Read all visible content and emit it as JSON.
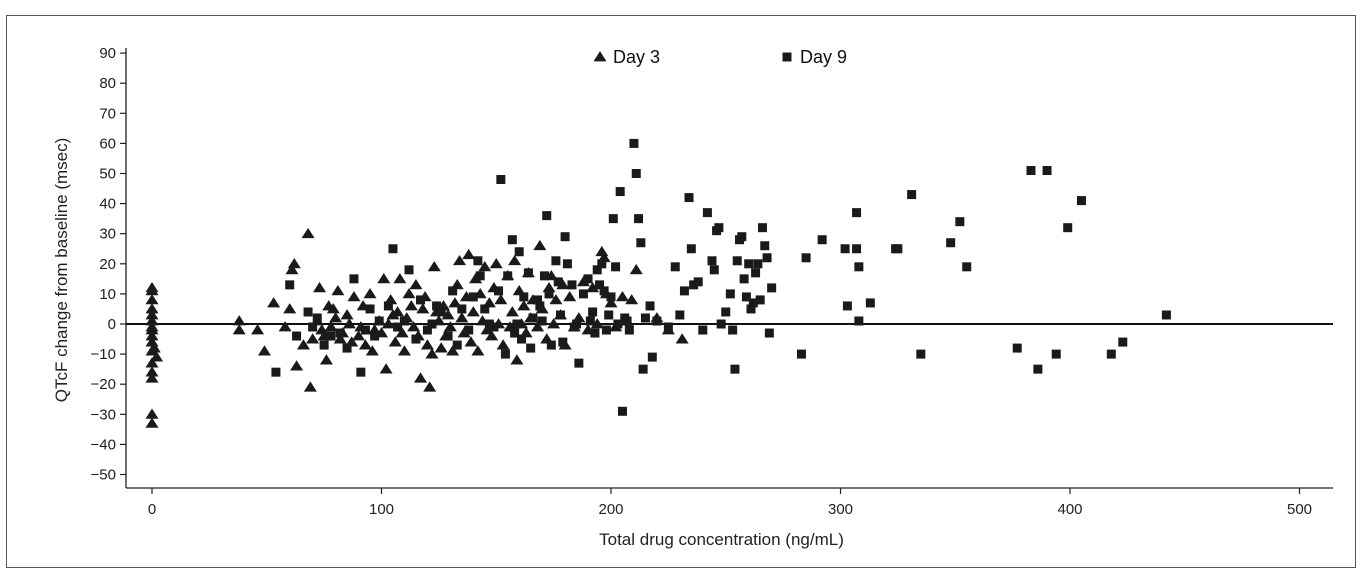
{
  "chart_data": {
    "type": "scatter",
    "title": "",
    "xlabel": "Total drug concentration (ng/mL)",
    "ylabel": "QTcF change from baseline (msec)",
    "xlim": [
      -10,
      515
    ],
    "ylim": [
      -53,
      90
    ],
    "xticks": [
      "0",
      "100",
      "200",
      "300",
      "400",
      "500"
    ],
    "yticks": [
      "90",
      "80",
      "70",
      "60",
      "50",
      "40",
      "30",
      "20",
      "10",
      "0",
      "−10",
      "−20",
      "−30",
      "−40",
      "−50"
    ],
    "reference_line_y": 0,
    "legend_position": "top-center",
    "marker_color": "#1a1a1a",
    "series": [
      {
        "name": "Day 3",
        "marker": "triangle",
        "points": [
          [
            0,
            12
          ],
          [
            0,
            11
          ],
          [
            0,
            8
          ],
          [
            0,
            5
          ],
          [
            0,
            3
          ],
          [
            0,
            1
          ],
          [
            0,
            -1
          ],
          [
            0,
            -2
          ],
          [
            0,
            -4
          ],
          [
            0,
            -6
          ],
          [
            0,
            -9
          ],
          [
            0,
            -13
          ],
          [
            0,
            -16
          ],
          [
            0,
            -18
          ],
          [
            0,
            -30
          ],
          [
            0,
            -33
          ],
          [
            1,
            -8
          ],
          [
            2,
            -11
          ],
          [
            38,
            1
          ],
          [
            38,
            -2
          ],
          [
            46,
            -2
          ],
          [
            49,
            -9
          ],
          [
            53,
            7
          ],
          [
            58,
            -1
          ],
          [
            60,
            5
          ],
          [
            61,
            18
          ],
          [
            62,
            20
          ],
          [
            63,
            -14
          ],
          [
            66,
            -7
          ],
          [
            68,
            30
          ],
          [
            69,
            -21
          ],
          [
            70,
            -5
          ],
          [
            72,
            1
          ],
          [
            73,
            12
          ],
          [
            74,
            -2
          ],
          [
            75,
            -4
          ],
          [
            76,
            -12
          ],
          [
            77,
            6
          ],
          [
            78,
            -1
          ],
          [
            79,
            5
          ],
          [
            80,
            2
          ],
          [
            81,
            11
          ],
          [
            82,
            -5
          ],
          [
            83,
            -3
          ],
          [
            85,
            3
          ],
          [
            86,
            0
          ],
          [
            87,
            -6
          ],
          [
            88,
            9
          ],
          [
            90,
            -4
          ],
          [
            91,
            -1
          ],
          [
            92,
            6
          ],
          [
            93,
            -7
          ],
          [
            95,
            10
          ],
          [
            96,
            -9
          ],
          [
            97,
            -2
          ],
          [
            99,
            1
          ],
          [
            100,
            -3
          ],
          [
            101,
            15
          ],
          [
            102,
            -15
          ],
          [
            103,
            0
          ],
          [
            104,
            8
          ],
          [
            105,
            3
          ],
          [
            106,
            -6
          ],
          [
            107,
            4
          ],
          [
            108,
            15
          ],
          [
            109,
            -3
          ],
          [
            110,
            -9
          ],
          [
            111,
            2
          ],
          [
            112,
            10
          ],
          [
            113,
            6
          ],
          [
            114,
            -1
          ],
          [
            115,
            13
          ],
          [
            116,
            -4
          ],
          [
            117,
            -18
          ],
          [
            118,
            5
          ],
          [
            119,
            9
          ],
          [
            120,
            -7
          ],
          [
            121,
            -21
          ],
          [
            122,
            -10
          ],
          [
            123,
            19
          ],
          [
            124,
            4
          ],
          [
            125,
            1
          ],
          [
            126,
            -8
          ],
          [
            127,
            6
          ],
          [
            128,
            -4
          ],
          [
            129,
            3
          ],
          [
            130,
            -1
          ],
          [
            131,
            -9
          ],
          [
            132,
            7
          ],
          [
            133,
            13
          ],
          [
            134,
            21
          ],
          [
            135,
            2
          ],
          [
            136,
            -3
          ],
          [
            137,
            9
          ],
          [
            138,
            23
          ],
          [
            139,
            -6
          ],
          [
            140,
            4
          ],
          [
            141,
            15
          ],
          [
            142,
            -9
          ],
          [
            143,
            10
          ],
          [
            144,
            1
          ],
          [
            145,
            19
          ],
          [
            146,
            -2
          ],
          [
            147,
            7
          ],
          [
            148,
            -4
          ],
          [
            149,
            12
          ],
          [
            150,
            20
          ],
          [
            151,
            0
          ],
          [
            152,
            8
          ],
          [
            153,
            -7
          ],
          [
            155,
            16
          ],
          [
            156,
            -1
          ],
          [
            157,
            4
          ],
          [
            158,
            21
          ],
          [
            159,
            -12
          ],
          [
            160,
            11
          ],
          [
            161,
            0
          ],
          [
            162,
            6
          ],
          [
            163,
            -3
          ],
          [
            164,
            17
          ],
          [
            165,
            2
          ],
          [
            166,
            8
          ],
          [
            168,
            -1
          ],
          [
            169,
            26
          ],
          [
            170,
            5
          ],
          [
            172,
            -5
          ],
          [
            173,
            12
          ],
          [
            174,
            16
          ],
          [
            175,
            0
          ],
          [
            176,
            8
          ],
          [
            178,
            3
          ],
          [
            179,
            13
          ],
          [
            180,
            -7
          ],
          [
            182,
            9
          ],
          [
            184,
            -1
          ],
          [
            186,
            2
          ],
          [
            188,
            14
          ],
          [
            190,
            -2
          ],
          [
            192,
            12
          ],
          [
            194,
            0
          ],
          [
            196,
            24
          ],
          [
            197,
            22
          ],
          [
            198,
            10
          ],
          [
            200,
            7
          ],
          [
            202,
            -1
          ],
          [
            205,
            9
          ],
          [
            207,
            1
          ],
          [
            209,
            8
          ],
          [
            211,
            18
          ],
          [
            220,
            2
          ],
          [
            225,
            -2
          ],
          [
            231,
            -5
          ]
        ]
      },
      {
        "name": "Day 9",
        "marker": "square",
        "points": [
          [
            54,
            -16
          ],
          [
            60,
            13
          ],
          [
            63,
            -4
          ],
          [
            68,
            4
          ],
          [
            70,
            -1
          ],
          [
            72,
            2
          ],
          [
            75,
            -7
          ],
          [
            78,
            -4
          ],
          [
            82,
            -3
          ],
          [
            85,
            -8
          ],
          [
            88,
            15
          ],
          [
            91,
            -16
          ],
          [
            93,
            -2
          ],
          [
            95,
            5
          ],
          [
            97,
            -4
          ],
          [
            99,
            1
          ],
          [
            103,
            6
          ],
          [
            105,
            25
          ],
          [
            107,
            -1
          ],
          [
            110,
            1
          ],
          [
            112,
            18
          ],
          [
            115,
            -5
          ],
          [
            117,
            8
          ],
          [
            120,
            -2
          ],
          [
            122,
            0
          ],
          [
            124,
            6
          ],
          [
            126,
            4
          ],
          [
            129,
            -4
          ],
          [
            131,
            11
          ],
          [
            133,
            -7
          ],
          [
            135,
            5
          ],
          [
            138,
            -2
          ],
          [
            140,
            9
          ],
          [
            142,
            21
          ],
          [
            143,
            16
          ],
          [
            145,
            5
          ],
          [
            147,
            0
          ],
          [
            149,
            -1
          ],
          [
            151,
            11
          ],
          [
            152,
            48
          ],
          [
            154,
            -10
          ],
          [
            155,
            16
          ],
          [
            157,
            28
          ],
          [
            158,
            -3
          ],
          [
            159,
            0
          ],
          [
            160,
            24
          ],
          [
            161,
            -5
          ],
          [
            162,
            9
          ],
          [
            164,
            17
          ],
          [
            165,
            -8
          ],
          [
            166,
            2
          ],
          [
            168,
            8
          ],
          [
            169,
            6
          ],
          [
            170,
            1
          ],
          [
            171,
            16
          ],
          [
            172,
            36
          ],
          [
            173,
            10
          ],
          [
            174,
            -7
          ],
          [
            176,
            21
          ],
          [
            177,
            14
          ],
          [
            178,
            3
          ],
          [
            179,
            -6
          ],
          [
            180,
            29
          ],
          [
            181,
            20
          ],
          [
            183,
            13
          ],
          [
            184,
            -1
          ],
          [
            185,
            0
          ],
          [
            186,
            -13
          ],
          [
            188,
            10
          ],
          [
            190,
            15
          ],
          [
            191,
            1
          ],
          [
            192,
            4
          ],
          [
            193,
            -3
          ],
          [
            194,
            18
          ],
          [
            195,
            13
          ],
          [
            196,
            20
          ],
          [
            197,
            11
          ],
          [
            198,
            -2
          ],
          [
            199,
            3
          ],
          [
            200,
            9
          ],
          [
            201,
            35
          ],
          [
            202,
            19
          ],
          [
            203,
            0
          ],
          [
            204,
            44
          ],
          [
            205,
            -29
          ],
          [
            206,
            2
          ],
          [
            207,
            1
          ],
          [
            208,
            -2
          ],
          [
            210,
            60
          ],
          [
            211,
            50
          ],
          [
            212,
            35
          ],
          [
            213,
            27
          ],
          [
            214,
            -15
          ],
          [
            215,
            2
          ],
          [
            217,
            6
          ],
          [
            218,
            -11
          ],
          [
            220,
            1
          ],
          [
            225,
            -1
          ],
          [
            228,
            19
          ],
          [
            230,
            3
          ],
          [
            232,
            11
          ],
          [
            234,
            42
          ],
          [
            235,
            25
          ],
          [
            236,
            13
          ],
          [
            238,
            14
          ],
          [
            240,
            -2
          ],
          [
            242,
            37
          ],
          [
            244,
            21
          ],
          [
            245,
            18
          ],
          [
            246,
            31
          ],
          [
            247,
            32
          ],
          [
            248,
            0
          ],
          [
            250,
            4
          ],
          [
            252,
            10
          ],
          [
            253,
            -2
          ],
          [
            254,
            -15
          ],
          [
            255,
            21
          ],
          [
            256,
            28
          ],
          [
            257,
            29
          ],
          [
            258,
            15
          ],
          [
            259,
            9
          ],
          [
            260,
            20
          ],
          [
            261,
            5
          ],
          [
            262,
            7
          ],
          [
            263,
            17
          ],
          [
            264,
            20
          ],
          [
            265,
            8
          ],
          [
            266,
            32
          ],
          [
            267,
            26
          ],
          [
            268,
            22
          ],
          [
            269,
            -3
          ],
          [
            270,
            12
          ],
          [
            283,
            -10
          ],
          [
            285,
            22
          ],
          [
            292,
            28
          ],
          [
            302,
            25
          ],
          [
            303,
            6
          ],
          [
            307,
            25
          ],
          [
            307,
            37
          ],
          [
            308,
            19
          ],
          [
            308,
            1
          ],
          [
            313,
            7
          ],
          [
            324,
            25
          ],
          [
            325,
            25
          ],
          [
            331,
            43
          ],
          [
            335,
            -10
          ],
          [
            348,
            27
          ],
          [
            352,
            34
          ],
          [
            355,
            19
          ],
          [
            377,
            -8
          ],
          [
            383,
            51
          ],
          [
            386,
            -15
          ],
          [
            390,
            51
          ],
          [
            394,
            -10
          ],
          [
            399,
            32
          ],
          [
            405,
            41
          ],
          [
            418,
            -10
          ],
          [
            423,
            -6
          ],
          [
            442,
            3
          ]
        ]
      }
    ]
  }
}
